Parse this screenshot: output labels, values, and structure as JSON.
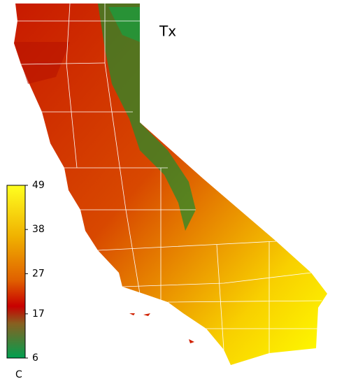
{
  "title": "Tx",
  "colorbar": {
    "ticks": [
      6,
      17,
      27,
      38,
      49
    ],
    "unit": "C"
  }
}
